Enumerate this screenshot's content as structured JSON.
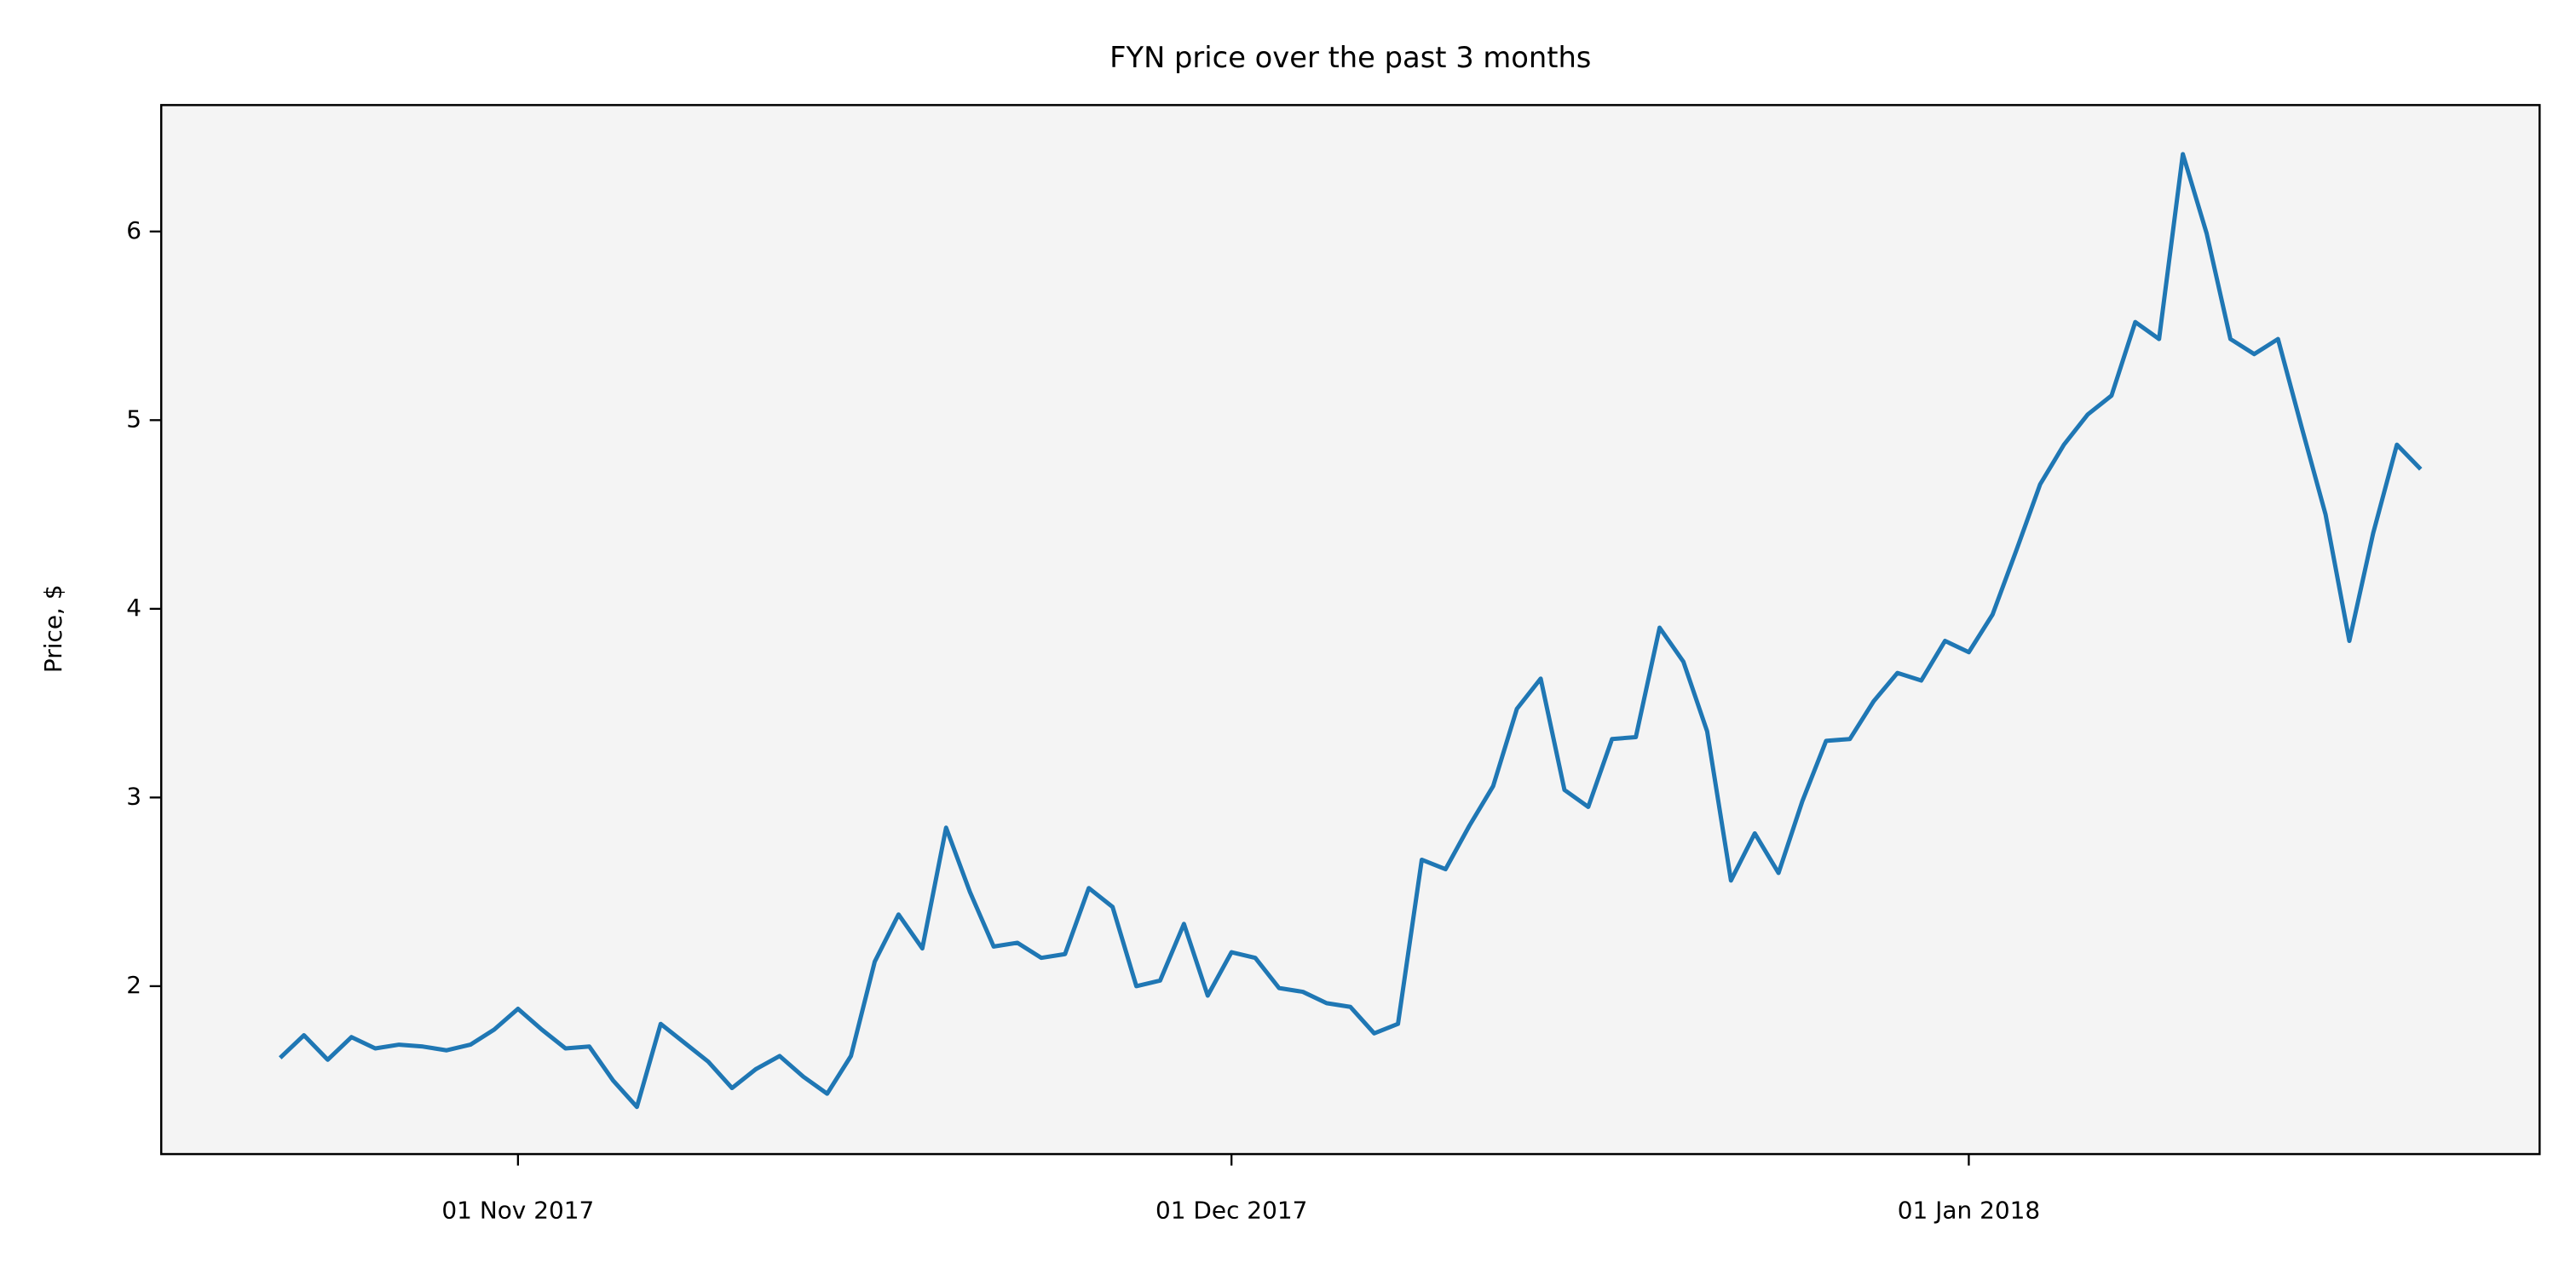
{
  "chart_data": {
    "type": "line",
    "title": "FYN price over the past 3 months",
    "ylabel": "Price, $",
    "x": [
      "2017-10-22",
      "2017-10-23",
      "2017-10-24",
      "2017-10-25",
      "2017-10-26",
      "2017-10-27",
      "2017-10-28",
      "2017-10-29",
      "2017-10-30",
      "2017-10-31",
      "2017-11-01",
      "2017-11-02",
      "2017-11-03",
      "2017-11-04",
      "2017-11-05",
      "2017-11-06",
      "2017-11-07",
      "2017-11-08",
      "2017-11-09",
      "2017-11-10",
      "2017-11-11",
      "2017-11-12",
      "2017-11-13",
      "2017-11-14",
      "2017-11-15",
      "2017-11-16",
      "2017-11-17",
      "2017-11-18",
      "2017-11-19",
      "2017-11-20",
      "2017-11-21",
      "2017-11-22",
      "2017-11-23",
      "2017-11-24",
      "2017-11-25",
      "2017-11-26",
      "2017-11-27",
      "2017-11-28",
      "2017-11-29",
      "2017-11-30",
      "2017-12-01",
      "2017-12-02",
      "2017-12-03",
      "2017-12-04",
      "2017-12-05",
      "2017-12-06",
      "2017-12-07",
      "2017-12-08",
      "2017-12-09",
      "2017-12-10",
      "2017-12-11",
      "2017-12-12",
      "2017-12-13",
      "2017-12-14",
      "2017-12-15",
      "2017-12-16",
      "2017-12-17",
      "2017-12-18",
      "2017-12-19",
      "2017-12-20",
      "2017-12-21",
      "2017-12-22",
      "2017-12-23",
      "2017-12-24",
      "2017-12-25",
      "2017-12-26",
      "2017-12-27",
      "2017-12-28",
      "2017-12-29",
      "2017-12-30",
      "2017-12-31",
      "2018-01-01",
      "2018-01-02",
      "2018-01-03",
      "2018-01-04",
      "2018-01-05",
      "2018-01-06",
      "2018-01-07",
      "2018-01-08",
      "2018-01-09",
      "2018-01-10",
      "2018-01-11",
      "2018-01-12",
      "2018-01-13",
      "2018-01-14",
      "2018-01-15",
      "2018-01-16",
      "2018-01-17",
      "2018-01-18",
      "2018-01-19",
      "2018-01-20"
    ],
    "values": [
      1.62,
      1.74,
      1.61,
      1.73,
      1.67,
      1.69,
      1.68,
      1.66,
      1.69,
      1.77,
      1.88,
      1.77,
      1.67,
      1.68,
      1.5,
      1.36,
      1.8,
      1.7,
      1.6,
      1.46,
      1.56,
      1.63,
      1.52,
      1.43,
      1.63,
      2.13,
      2.38,
      2.2,
      2.84,
      2.5,
      2.21,
      2.23,
      2.15,
      2.17,
      2.52,
      2.42,
      2.0,
      2.03,
      2.33,
      1.95,
      2.18,
      2.15,
      1.99,
      1.97,
      1.91,
      1.89,
      1.75,
      1.8,
      2.67,
      2.62,
      2.85,
      3.06,
      3.47,
      3.63,
      3.04,
      2.95,
      3.31,
      3.32,
      3.9,
      3.72,
      3.35,
      2.56,
      2.81,
      2.6,
      2.98,
      3.3,
      3.31,
      3.51,
      3.66,
      3.62,
      3.83,
      3.77,
      3.97,
      4.31,
      4.66,
      4.87,
      5.03,
      5.13,
      5.52,
      5.43,
      6.41,
      5.99,
      5.43,
      5.35,
      5.43,
      4.96,
      4.5,
      3.83,
      4.4,
      4.87,
      4.74
    ],
    "color": "#1f77b4",
    "background": "#f4f4f4",
    "xlim": [
      "2017-10-17",
      "2018-01-25"
    ],
    "xticks": [
      {
        "value": "2017-11-01",
        "label": "01 Nov 2017"
      },
      {
        "value": "2017-12-01",
        "label": "01 Dec 2017"
      },
      {
        "value": "2018-01-01",
        "label": "01 Jan 2018"
      }
    ],
    "ylim": [
      1.11,
      6.67
    ],
    "yticks": [
      2,
      3,
      4,
      5,
      6
    ],
    "grid": false
  }
}
